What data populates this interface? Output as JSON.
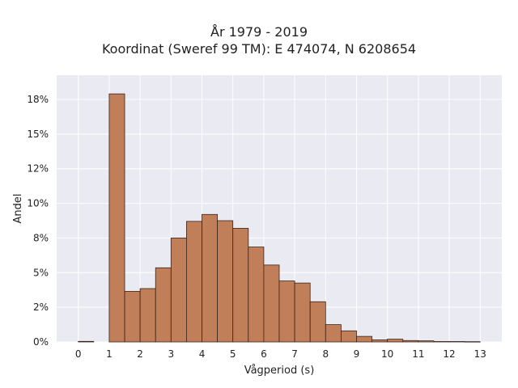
{
  "chart_data": {
    "type": "bar",
    "title_lines": [
      "År 1979 - 2019",
      "Koordinat (Sweref 99 TM): E 474074, N 6208654"
    ],
    "xlabel": "Vågperiod (s)",
    "ylabel": "Andel",
    "xlim": [
      -0.7,
      13.7
    ],
    "ylim": [
      0,
      0.1925
    ],
    "x_ticks": [
      0,
      1,
      2,
      3,
      4,
      5,
      6,
      7,
      8,
      9,
      10,
      11,
      12,
      13
    ],
    "y_ticks": [
      0,
      0.025,
      0.05,
      0.075,
      0.1,
      0.125,
      0.15,
      0.175
    ],
    "y_tick_labels": [
      "0%",
      "2%",
      "5%",
      "8%",
      "10%",
      "12%",
      "15%",
      "18%"
    ],
    "bin_width": 0.5,
    "bins": [
      {
        "x0": 0.0,
        "value": 0.0004
      },
      {
        "x0": 0.5,
        "value": 0.0
      },
      {
        "x0": 1.0,
        "value": 0.179
      },
      {
        "x0": 1.5,
        "value": 0.0365
      },
      {
        "x0": 2.0,
        "value": 0.0385
      },
      {
        "x0": 2.5,
        "value": 0.0535
      },
      {
        "x0": 3.0,
        "value": 0.075
      },
      {
        "x0": 3.5,
        "value": 0.087
      },
      {
        "x0": 4.0,
        "value": 0.092
      },
      {
        "x0": 4.5,
        "value": 0.0875
      },
      {
        "x0": 5.0,
        "value": 0.082
      },
      {
        "x0": 5.5,
        "value": 0.0685
      },
      {
        "x0": 6.0,
        "value": 0.0555
      },
      {
        "x0": 6.5,
        "value": 0.044
      },
      {
        "x0": 7.0,
        "value": 0.0425
      },
      {
        "x0": 7.5,
        "value": 0.029
      },
      {
        "x0": 8.0,
        "value": 0.0125
      },
      {
        "x0": 8.5,
        "value": 0.008
      },
      {
        "x0": 9.0,
        "value": 0.004
      },
      {
        "x0": 9.5,
        "value": 0.0015
      },
      {
        "x0": 10.0,
        "value": 0.002
      },
      {
        "x0": 10.5,
        "value": 0.001
      },
      {
        "x0": 11.0,
        "value": 0.0008
      },
      {
        "x0": 11.5,
        "value": 0.0003
      },
      {
        "x0": 12.0,
        "value": 0.0003
      },
      {
        "x0": 12.5,
        "value": 0.0002
      }
    ],
    "grid": true,
    "colors": {
      "plot_background": "#eaeaf2",
      "grid": "#ffffff",
      "bar_fill": "#c17f59",
      "bar_edge": "#3a2418"
    }
  }
}
